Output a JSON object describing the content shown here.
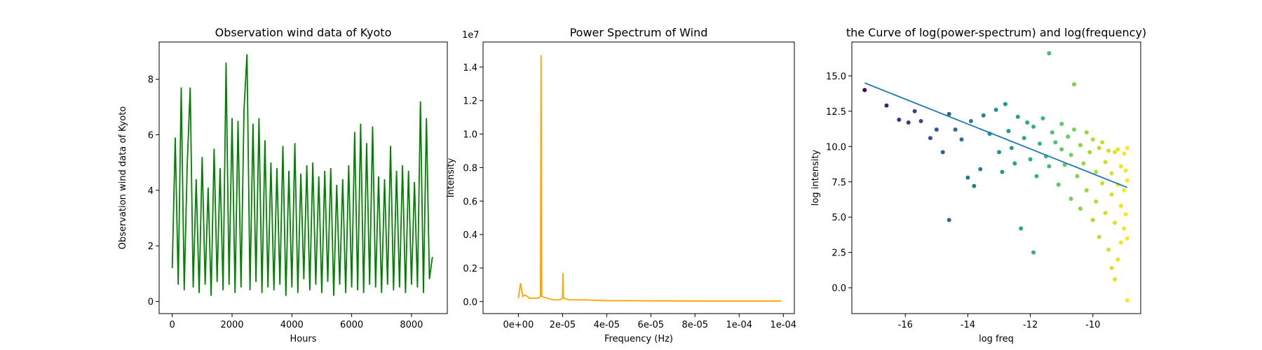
{
  "chart_data": [
    {
      "type": "line",
      "title": "Observation wind data of Kyoto",
      "x_label": "Hours",
      "y_label": "Observation wind data of Kyoto",
      "x": [
        0,
        100,
        200,
        300,
        400,
        500,
        600,
        700,
        800,
        900,
        1000,
        1100,
        1200,
        1300,
        1400,
        1500,
        1600,
        1700,
        1800,
        1900,
        2000,
        2100,
        2200,
        2300,
        2400,
        2500,
        2600,
        2700,
        2800,
        2900,
        3000,
        3100,
        3200,
        3300,
        3400,
        3500,
        3600,
        3700,
        3800,
        3900,
        4000,
        4100,
        4200,
        4300,
        4400,
        4500,
        4600,
        4700,
        4800,
        4900,
        5000,
        5100,
        5200,
        5300,
        5400,
        5500,
        5600,
        5700,
        5800,
        5900,
        6000,
        6100,
        6200,
        6300,
        6400,
        6500,
        6600,
        6700,
        6800,
        6900,
        7000,
        7100,
        7200,
        7300,
        7400,
        7500,
        7600,
        7700,
        7800,
        7900,
        8000,
        8100,
        8200,
        8300,
        8400,
        8500,
        8600,
        8700
      ],
      "series": [
        {
          "color": "#008000",
          "values": [
            1.2,
            5.9,
            0.6,
            7.7,
            0.4,
            4.9,
            7.7,
            0.5,
            4.4,
            0.3,
            5.2,
            0.6,
            4.1,
            0.2,
            5.5,
            0.7,
            4.8,
            0.4,
            8.6,
            0.6,
            6.6,
            0.3,
            6.5,
            0.5,
            6.9,
            8.9,
            0.4,
            6.4,
            0.7,
            6.6,
            0.3,
            5.8,
            0.5,
            5.0,
            0.4,
            4.8,
            0.6,
            5.6,
            0.2,
            4.7,
            0.5,
            5.7,
            0.3,
            4.6,
            0.8,
            4.9,
            0.4,
            5.0,
            0.6,
            4.5,
            0.3,
            4.7,
            0.7,
            4.8,
            0.2,
            4.2,
            0.6,
            4.4,
            0.3,
            4.9,
            0.5,
            6.1,
            0.4,
            6.4,
            0.3,
            5.7,
            0.6,
            6.3,
            0.5,
            4.5,
            0.3,
            4.4,
            0.6,
            5.6,
            0.4,
            4.7,
            0.5,
            4.9,
            0.3,
            4.7,
            0.6,
            4.3,
            0.5,
            7.2,
            0.3,
            6.6,
            0.8,
            1.6
          ]
        }
      ],
      "xlim": [
        -438,
        9198
      ],
      "xticks": [
        0,
        2000,
        4000,
        6000,
        8000
      ],
      "ylim": [
        -0.44,
        9.34
      ],
      "yticks": [
        0,
        2,
        4,
        6,
        8
      ]
    },
    {
      "type": "line",
      "title": "Power Spectrum of Wind",
      "x_label": "Frequency (Hz)",
      "y_label": "Intensity",
      "y_offset_label": "1e7",
      "x": [
        0,
        1e-06,
        2e-06,
        3e-06,
        5e-06,
        7e-06,
        9e-06,
        1e-05,
        1.03e-05,
        1.06e-05,
        1.3e-05,
        1.6e-05,
        1.9e-05,
        2e-05,
        2.02e-05,
        2.04e-05,
        2.3e-05,
        3e-05,
        4e-05,
        5e-05,
        6e-05,
        7e-05,
        8e-05,
        9e-05,
        0.0001,
        0.00011,
        0.000119
      ],
      "series": [
        {
          "color": "#ffa500",
          "values": [
            0.02,
            0.11,
            0.03,
            0.04,
            0.02,
            0.02,
            0.02,
            0.03,
            1.47,
            0.03,
            0.02,
            0.01,
            0.01,
            0.02,
            0.17,
            0.02,
            0.01,
            0.01,
            0.005,
            0.005,
            0.004,
            0.004,
            0.003,
            0.003,
            0.003,
            0.003,
            0.003
          ]
        }
      ],
      "xlim": [
        -1.6e-05,
        0.000125
      ],
      "xticks": [
        {
          "value": 0,
          "label": "0e+00"
        },
        {
          "value": 2e-05,
          "label": "2e-05"
        },
        {
          "value": 4e-05,
          "label": "4e-05"
        },
        {
          "value": 6e-05,
          "label": "6e-05"
        },
        {
          "value": 8e-05,
          "label": "8e-05"
        },
        {
          "value": 0.0001,
          "label": "1e-04"
        },
        {
          "value": 0.00012,
          "label": "1e-04"
        }
      ],
      "ylim": [
        -0.072,
        1.55
      ],
      "yticks": [
        {
          "value": 0,
          "label": "0.0"
        },
        {
          "value": 0.2,
          "label": "0.2"
        },
        {
          "value": 0.4,
          "label": "0.4"
        },
        {
          "value": 0.6,
          "label": "0.6"
        },
        {
          "value": 0.8,
          "label": "0.8"
        },
        {
          "value": 1,
          "label": "1.0"
        },
        {
          "value": 1.2,
          "label": "1.2"
        },
        {
          "value": 1.4,
          "label": "1.4"
        }
      ]
    },
    {
      "type": "scatter",
      "title": "the Curve of log(power-spectrum) and log(frequency)",
      "x_label": "log freq",
      "y_label": "log intensity",
      "colormap": "viridis",
      "x": [
        -17.3,
        -16.6,
        -16.2,
        -15.9,
        -15.7,
        -15.5,
        -15.2,
        -15.0,
        -14.8,
        -14.6,
        -14.6,
        -14.4,
        -14.2,
        -14.0,
        -13.9,
        -13.8,
        -13.6,
        -13.5,
        -13.3,
        -13.1,
        -13.0,
        -12.9,
        -12.8,
        -12.7,
        -12.6,
        -12.5,
        -12.4,
        -12.3,
        -12.2,
        -12.1,
        -12.0,
        -11.9,
        -11.9,
        -11.8,
        -11.7,
        -11.6,
        -11.5,
        -11.4,
        -11.4,
        -11.3,
        -11.2,
        -11.1,
        -11.0,
        -11.0,
        -10.9,
        -10.8,
        -10.7,
        -10.7,
        -10.6,
        -10.6,
        -10.5,
        -10.4,
        -10.4,
        -10.3,
        -10.2,
        -10.2,
        -10.1,
        -10.0,
        -10.0,
        -9.9,
        -9.9,
        -9.8,
        -9.8,
        -9.7,
        -9.7,
        -9.6,
        -9.6,
        -9.5,
        -9.5,
        -9.4,
        -9.4,
        -9.4,
        -9.3,
        -9.3,
        -9.3,
        -9.2,
        -9.2,
        -9.2,
        -9.1,
        -9.1,
        -9.1,
        -9.0,
        -9.0,
        -9.0,
        -8.95,
        -8.95,
        -8.9,
        -8.9,
        -8.9,
        -8.9
      ],
      "values": [
        14.0,
        12.9,
        11.9,
        11.7,
        12.5,
        11.8,
        10.6,
        11.2,
        9.6,
        4.8,
        12.3,
        11.2,
        10.5,
        7.8,
        11.8,
        7.2,
        8.4,
        12.2,
        10.9,
        12.6,
        9.6,
        8.2,
        13.0,
        11.1,
        9.9,
        8.8,
        12.1,
        4.2,
        10.6,
        11.7,
        9.1,
        2.5,
        11.4,
        7.9,
        10.2,
        12.0,
        9.3,
        16.6,
        8.6,
        11.0,
        10.3,
        7.3,
        9.8,
        11.6,
        8.7,
        10.7,
        6.3,
        9.4,
        14.4,
        11.2,
        7.9,
        10.1,
        5.6,
        8.8,
        11.0,
        6.9,
        9.6,
        4.8,
        10.5,
        8.2,
        6.1,
        9.9,
        3.6,
        7.4,
        10.3,
        5.3,
        8.9,
        2.7,
        9.7,
        6.6,
        1.4,
        8.1,
        0.6,
        9.6,
        4.6,
        7.3,
        2.0,
        9.8,
        5.8,
        8.6,
        3.2,
        9.5,
        6.9,
        4.2,
        8.3,
        5.2,
        9.9,
        -0.9,
        7.6,
        3.5
      ],
      "fit": {
        "color": "#1f77b4",
        "x": [
          -17.3,
          -8.9
        ],
        "values": [
          14.5,
          7.1
        ]
      },
      "xlim": [
        -17.71,
        -8.47
      ],
      "xticks": [
        -16,
        -14,
        -12,
        -10
      ],
      "ylim": [
        -1.83,
        17.4
      ],
      "yticks": [
        {
          "value": 0,
          "label": "0.0"
        },
        {
          "value": 2.5,
          "label": "2.5"
        },
        {
          "value": 5,
          "label": "5.0"
        },
        {
          "value": 7.5,
          "label": "7.5"
        },
        {
          "value": 10,
          "label": "10.0"
        },
        {
          "value": 12.5,
          "label": "12.5"
        },
        {
          "value": 15,
          "label": "15.0"
        }
      ]
    }
  ]
}
